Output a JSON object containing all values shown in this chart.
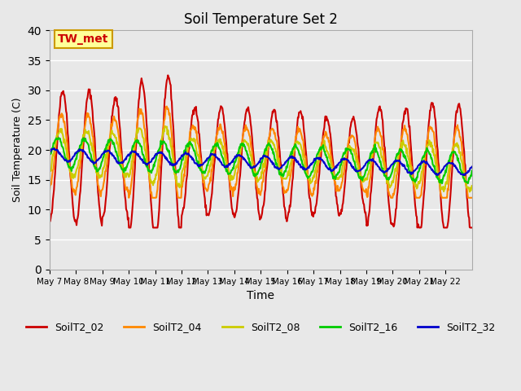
{
  "title": "Soil Temperature Set 2",
  "xlabel": "Time",
  "ylabel": "Soil Temperature (C)",
  "ylim": [
    0,
    40
  ],
  "yticks": [
    0,
    5,
    10,
    15,
    20,
    25,
    30,
    35,
    40
  ],
  "background_color": "#e8e8e8",
  "plot_bg_color": "#e8e8e8",
  "annotation_text": "TW_met",
  "annotation_color": "#cc0000",
  "annotation_bg": "#ffff99",
  "annotation_border": "#cc9900",
  "series": {
    "SoilT2_02": {
      "color": "#cc0000",
      "lw": 1.5
    },
    "SoilT2_04": {
      "color": "#ff8800",
      "lw": 1.5
    },
    "SoilT2_08": {
      "color": "#cccc00",
      "lw": 1.5
    },
    "SoilT2_16": {
      "color": "#00cc00",
      "lw": 1.5
    },
    "SoilT2_32": {
      "color": "#0000cc",
      "lw": 1.5
    }
  },
  "xtick_labels": [
    "May 7",
    "May 8",
    "May 9",
    "May 10",
    "May 11",
    "May 12",
    "May 13",
    "May 14",
    "May 15",
    "May 16",
    "May 17",
    "May 18",
    "May 19",
    "May 20",
    "May 21",
    "May 22"
  ],
  "legend_ncol": 5
}
